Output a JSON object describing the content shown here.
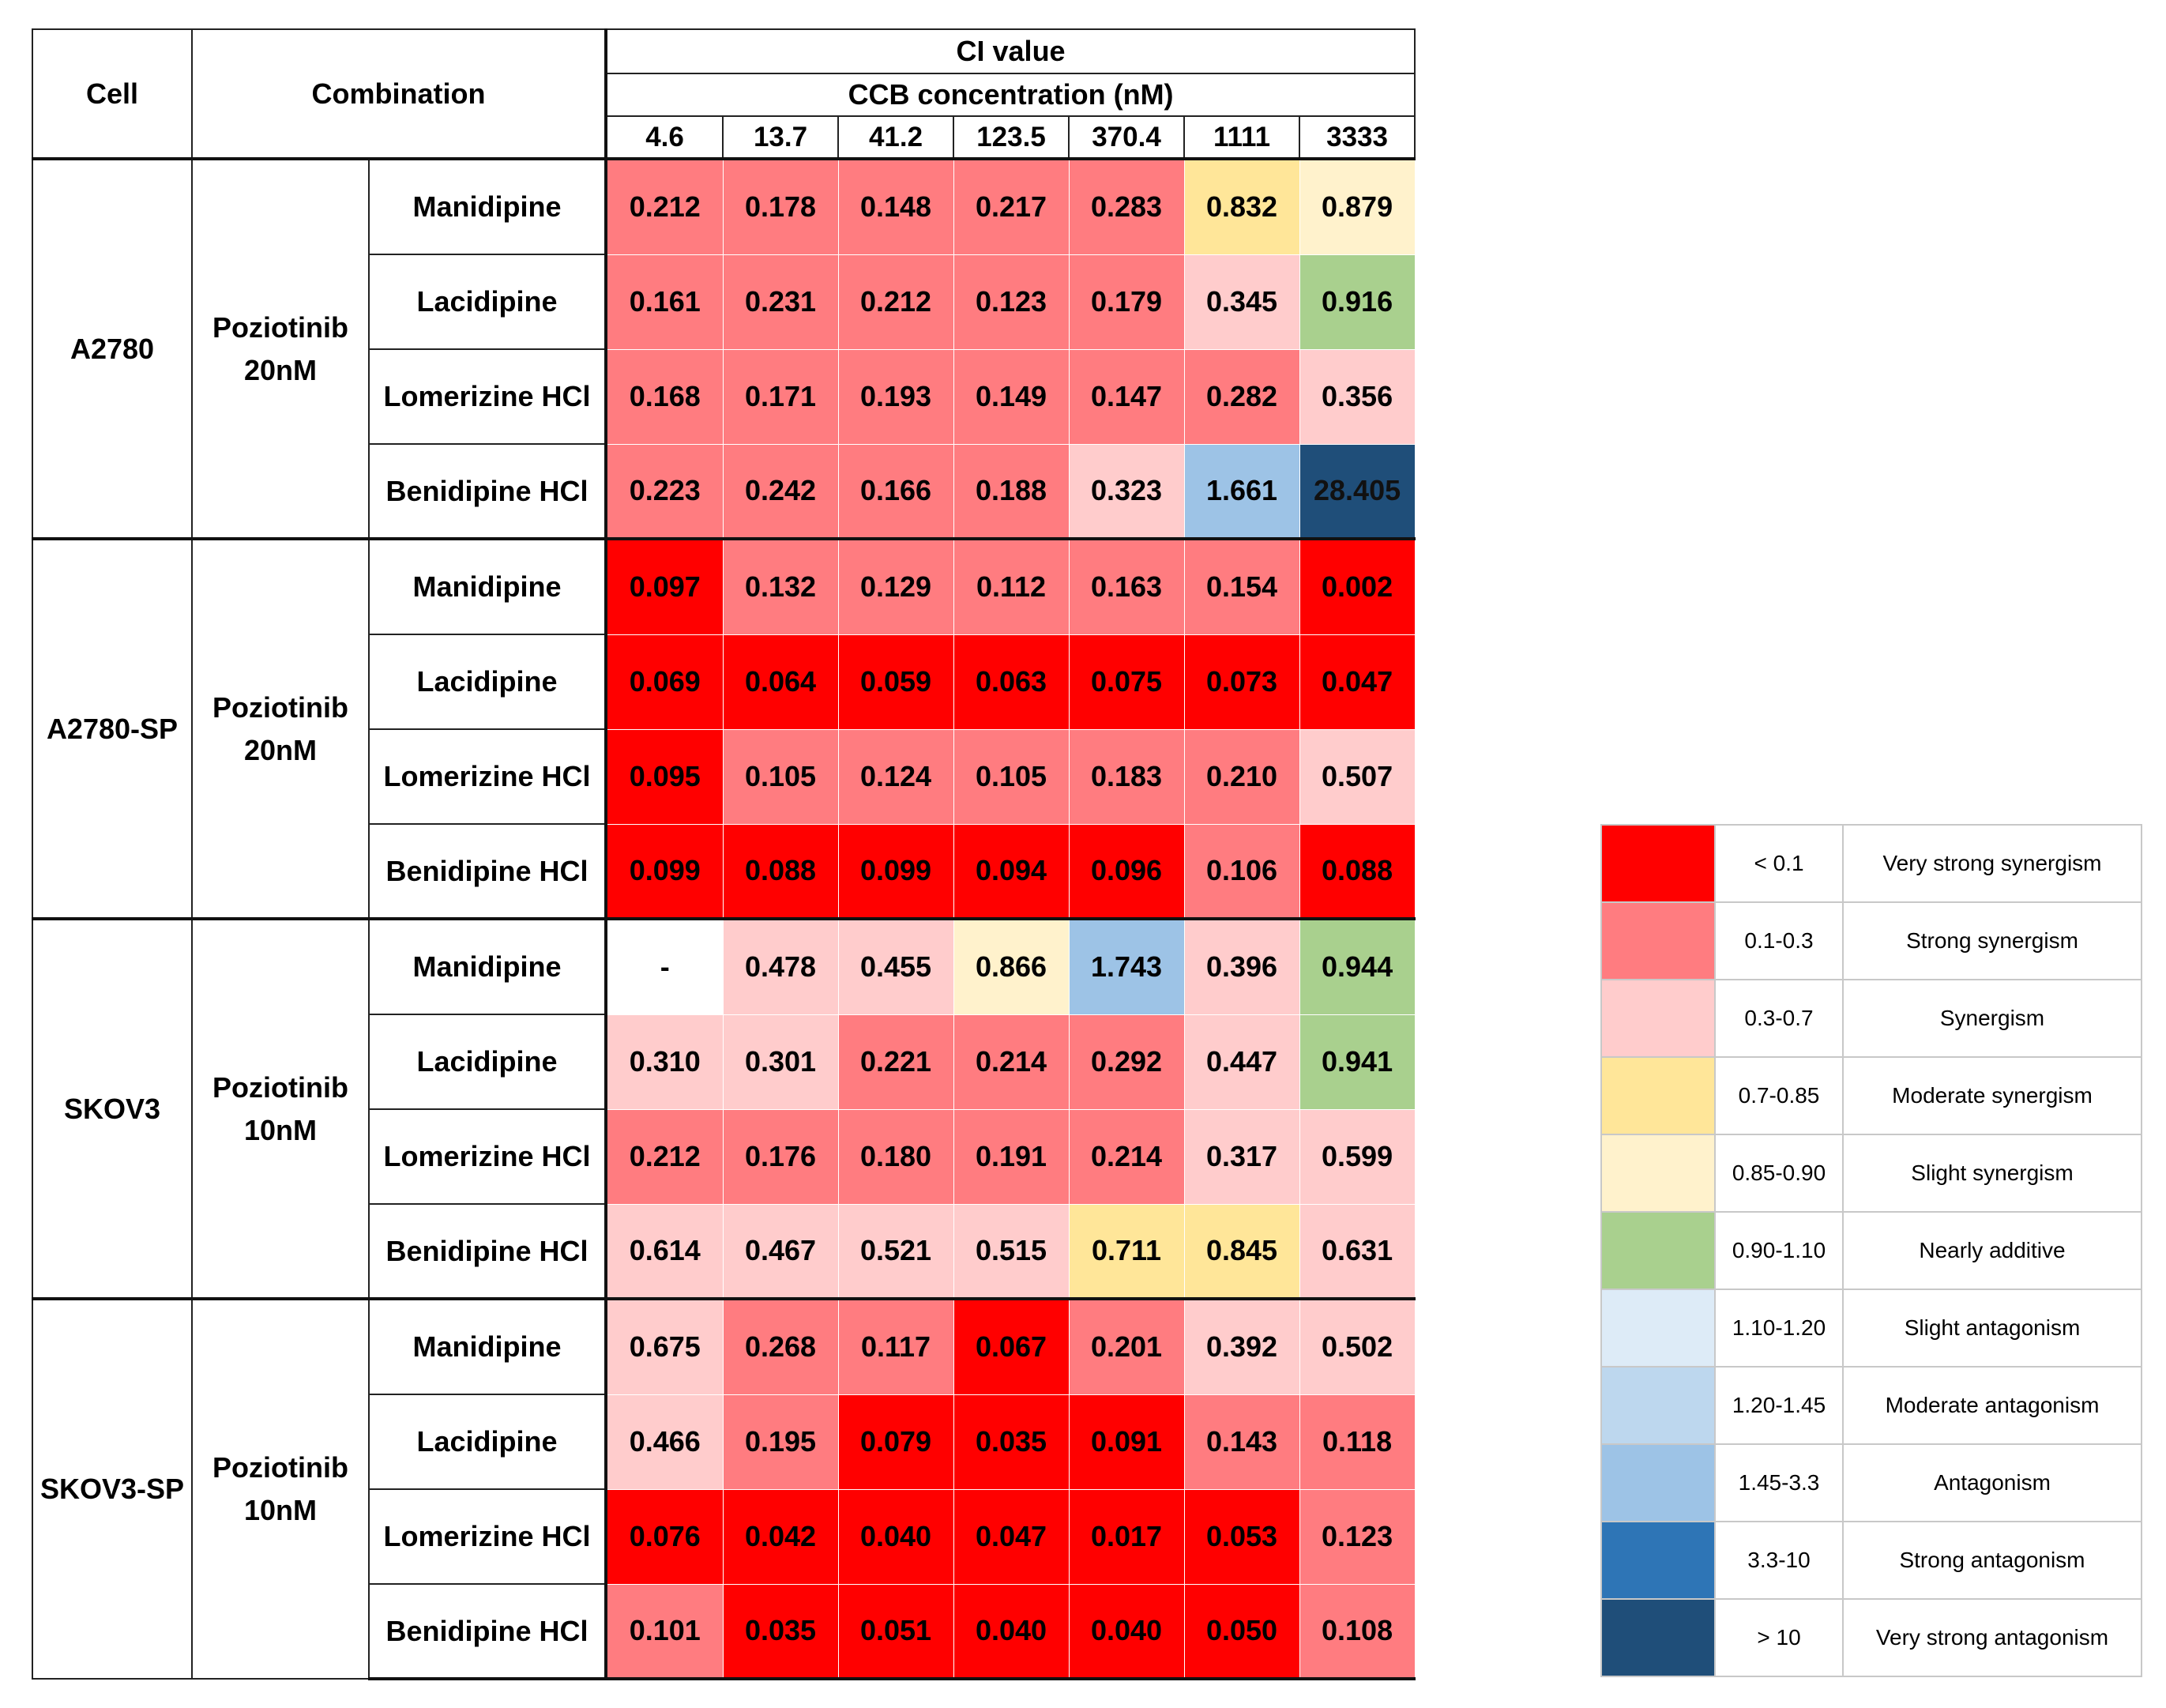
{
  "chart_data": {
    "type": "heatmap",
    "title": "CI value",
    "xlabel": "CCB concentration (nM)",
    "header_cell": "Cell",
    "header_combination": "Combination",
    "x": [
      "4.6",
      "13.7",
      "41.2",
      "123.5",
      "370.4",
      "1111",
      "3333"
    ],
    "groups": [
      {
        "cell": "A2780",
        "combination": [
          "Poziotinib",
          "20nM"
        ],
        "rows": [
          {
            "drug": "Manidipine",
            "values": [
              "0.212",
              "0.178",
              "0.148",
              "0.217",
              "0.283",
              "0.832",
              "0.879"
            ]
          },
          {
            "drug": "Lacidipine",
            "values": [
              "0.161",
              "0.231",
              "0.212",
              "0.123",
              "0.179",
              "0.345",
              "0.916"
            ]
          },
          {
            "drug": "Lomerizine HCl",
            "values": [
              "0.168",
              "0.171",
              "0.193",
              "0.149",
              "0.147",
              "0.282",
              "0.356"
            ]
          },
          {
            "drug": "Benidipine HCl",
            "values": [
              "0.223",
              "0.242",
              "0.166",
              "0.188",
              "0.323",
              "1.661",
              "28.405"
            ]
          }
        ]
      },
      {
        "cell": "A2780-SP",
        "combination": [
          "Poziotinib",
          "20nM"
        ],
        "rows": [
          {
            "drug": "Manidipine",
            "values": [
              "0.097",
              "0.132",
              "0.129",
              "0.112",
              "0.163",
              "0.154",
              "0.002"
            ]
          },
          {
            "drug": "Lacidipine",
            "values": [
              "0.069",
              "0.064",
              "0.059",
              "0.063",
              "0.075",
              "0.073",
              "0.047"
            ]
          },
          {
            "drug": "Lomerizine HCl",
            "values": [
              "0.095",
              "0.105",
              "0.124",
              "0.105",
              "0.183",
              "0.210",
              "0.507"
            ]
          },
          {
            "drug": "Benidipine HCl",
            "values": [
              "0.099",
              "0.088",
              "0.099",
              "0.094",
              "0.096",
              "0.106",
              "0.088"
            ]
          }
        ]
      },
      {
        "cell": "SKOV3",
        "combination": [
          "Poziotinib",
          "10nM"
        ],
        "rows": [
          {
            "drug": "Manidipine",
            "values": [
              "-",
              "0.478",
              "0.455",
              "0.866",
              "1.743",
              "0.396",
              "0.944"
            ]
          },
          {
            "drug": "Lacidipine",
            "values": [
              "0.310",
              "0.301",
              "0.221",
              "0.214",
              "0.292",
              "0.447",
              "0.941"
            ]
          },
          {
            "drug": "Lomerizine HCl",
            "values": [
              "0.212",
              "0.176",
              "0.180",
              "0.191",
              "0.214",
              "0.317",
              "0.599"
            ]
          },
          {
            "drug": "Benidipine HCl",
            "values": [
              "0.614",
              "0.467",
              "0.521",
              "0.515",
              "0.711",
              "0.845",
              "0.631"
            ]
          }
        ]
      },
      {
        "cell": "SKOV3-SP",
        "combination": [
          "Poziotinib",
          "10nM"
        ],
        "rows": [
          {
            "drug": "Manidipine",
            "values": [
              "0.675",
              "0.268",
              "0.117",
              "0.067",
              "0.201",
              "0.392",
              "0.502"
            ]
          },
          {
            "drug": "Lacidipine",
            "values": [
              "0.466",
              "0.195",
              "0.079",
              "0.035",
              "0.091",
              "0.143",
              "0.118"
            ]
          },
          {
            "drug": "Lomerizine HCl",
            "values": [
              "0.076",
              "0.042",
              "0.040",
              "0.047",
              "0.017",
              "0.053",
              "0.123"
            ]
          },
          {
            "drug": "Benidipine HCl",
            "values": [
              "0.101",
              "0.035",
              "0.051",
              "0.040",
              "0.040",
              "0.050",
              "0.108"
            ]
          }
        ]
      }
    ],
    "legend": [
      {
        "range": "< 0.1",
        "label": "Very strong synergism",
        "color": "#ff0000",
        "min": 0,
        "max": 0.1
      },
      {
        "range": "0.1-0.3",
        "label": "Strong synergism",
        "color": "#ff7c80",
        "min": 0.1,
        "max": 0.3
      },
      {
        "range": "0.3-0.7",
        "label": "Synergism",
        "color": "#ffcccc",
        "min": 0.3,
        "max": 0.7
      },
      {
        "range": "0.7-0.85",
        "label": "Moderate synergism",
        "color": "#ffe699",
        "min": 0.7,
        "max": 0.85
      },
      {
        "range": "0.85-0.90",
        "label": "Slight synergism",
        "color": "#fff2cc",
        "min": 0.85,
        "max": 0.9
      },
      {
        "range": "0.90-1.10",
        "label": "Nearly additive",
        "color": "#a9d08e",
        "min": 0.9,
        "max": 1.1
      },
      {
        "range": "1.10-1.20",
        "label": "Slight antagonism",
        "color": "#ddebf7",
        "min": 1.1,
        "max": 1.2
      },
      {
        "range": "1.20-1.45",
        "label": "Moderate antagonism",
        "color": "#bdd7ee",
        "min": 1.2,
        "max": 1.45
      },
      {
        "range": "1.45-3.3",
        "label": "Antagonism",
        "color": "#9dc3e6",
        "min": 1.45,
        "max": 3.3
      },
      {
        "range": "3.3-10",
        "label": "Strong antagonism",
        "color": "#2e75b6",
        "min": 3.3,
        "max": 10
      },
      {
        "range": "> 10",
        "label": "Very strong antagonism",
        "color": "#1f4e79",
        "min": 10,
        "max": 1000000
      }
    ]
  }
}
